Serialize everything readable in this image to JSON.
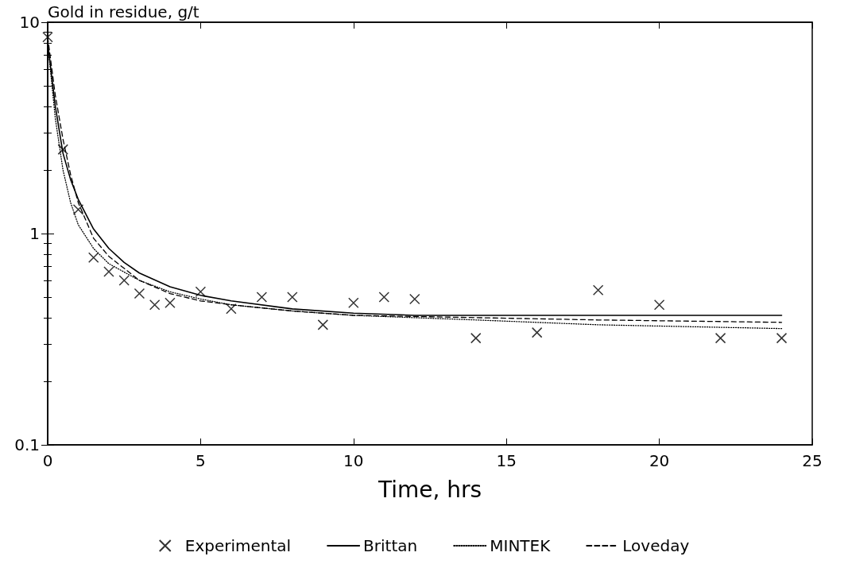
{
  "chart_data": {
    "type": "line",
    "ylabel": "Gold in residue, g/t",
    "xlabel": "Time, hrs",
    "log": "y",
    "xlim": [
      0,
      25
    ],
    "xticks": [
      0,
      5,
      10,
      15,
      20,
      25
    ],
    "ylim": [
      0.1,
      10
    ],
    "yticks": [
      0.1,
      1,
      10
    ],
    "grid": false,
    "legend": "bottom",
    "series": [
      {
        "name": "Experimental",
        "type": "scatter",
        "marker": "cross",
        "color": "#000000",
        "x": [
          0,
          0.5,
          1,
          1.5,
          2,
          2.5,
          3,
          3.5,
          4,
          5,
          6,
          7,
          8,
          9,
          10,
          11,
          12,
          14,
          16,
          18,
          20,
          22,
          24
        ],
        "values": [
          8.5,
          2.5,
          1.3,
          0.77,
          0.66,
          0.6,
          0.52,
          0.46,
          0.47,
          0.53,
          0.44,
          0.5,
          0.5,
          0.37,
          0.47,
          0.5,
          0.49,
          0.32,
          0.34,
          0.54,
          0.46,
          0.32,
          0.32
        ]
      },
      {
        "name": "Brittan",
        "line_style": "solid",
        "marker": "none",
        "color": "#000000",
        "x": [
          0,
          0.25,
          0.5,
          0.75,
          1,
          1.5,
          2,
          2.5,
          3,
          4,
          5,
          6,
          8,
          10,
          12,
          16,
          24
        ],
        "values": [
          8,
          4,
          2.4,
          1.8,
          1.45,
          1.05,
          0.85,
          0.73,
          0.65,
          0.56,
          0.51,
          0.48,
          0.44,
          0.42,
          0.41,
          0.41,
          0.41
        ]
      },
      {
        "name": "MINTEK",
        "line_style": "dotted",
        "marker": "none",
        "color": "#000000",
        "x": [
          0,
          0.25,
          0.5,
          0.75,
          1,
          1.5,
          2,
          3,
          4,
          5,
          6,
          8,
          10,
          14,
          18,
          24
        ],
        "values": [
          8,
          3.5,
          2,
          1.4,
          1.1,
          0.85,
          0.72,
          0.6,
          0.53,
          0.49,
          0.46,
          0.43,
          0.41,
          0.39,
          0.37,
          0.355
        ]
      },
      {
        "name": "Loveday",
        "line_style": "dashed",
        "marker": "none",
        "color": "#000000",
        "x": [
          0,
          0.25,
          0.5,
          0.75,
          1,
          1.5,
          2,
          3,
          4,
          5,
          6,
          8,
          10,
          14,
          18,
          24
        ],
        "values": [
          8.5,
          4.5,
          2.8,
          1.9,
          1.4,
          0.95,
          0.78,
          0.6,
          0.52,
          0.48,
          0.46,
          0.43,
          0.41,
          0.4,
          0.39,
          0.38
        ]
      }
    ]
  }
}
